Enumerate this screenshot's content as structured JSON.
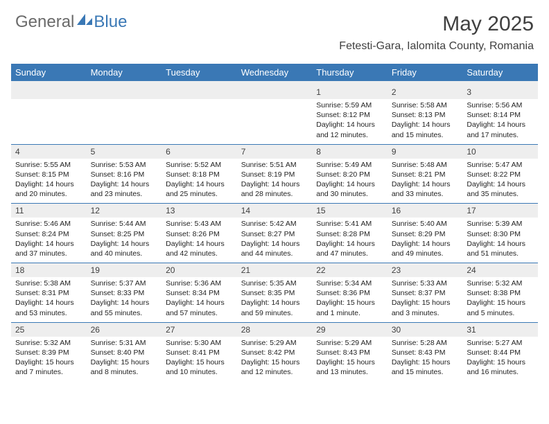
{
  "brand": {
    "general": "General",
    "blue": "Blue"
  },
  "title": "May 2025",
  "location": "Fetesti-Gara, Ialomita County, Romania",
  "colors": {
    "accent": "#3a78b5",
    "header_text": "#ffffff",
    "stripe": "#eeeeee",
    "text": "#222222"
  },
  "day_headers": [
    "Sunday",
    "Monday",
    "Tuesday",
    "Wednesday",
    "Thursday",
    "Friday",
    "Saturday"
  ],
  "weeks": [
    [
      null,
      null,
      null,
      null,
      {
        "n": "1",
        "sr": "Sunrise: 5:59 AM",
        "ss": "Sunset: 8:12 PM",
        "d1": "Daylight: 14 hours",
        "d2": "and 12 minutes."
      },
      {
        "n": "2",
        "sr": "Sunrise: 5:58 AM",
        "ss": "Sunset: 8:13 PM",
        "d1": "Daylight: 14 hours",
        "d2": "and 15 minutes."
      },
      {
        "n": "3",
        "sr": "Sunrise: 5:56 AM",
        "ss": "Sunset: 8:14 PM",
        "d1": "Daylight: 14 hours",
        "d2": "and 17 minutes."
      }
    ],
    [
      {
        "n": "4",
        "sr": "Sunrise: 5:55 AM",
        "ss": "Sunset: 8:15 PM",
        "d1": "Daylight: 14 hours",
        "d2": "and 20 minutes."
      },
      {
        "n": "5",
        "sr": "Sunrise: 5:53 AM",
        "ss": "Sunset: 8:16 PM",
        "d1": "Daylight: 14 hours",
        "d2": "and 23 minutes."
      },
      {
        "n": "6",
        "sr": "Sunrise: 5:52 AM",
        "ss": "Sunset: 8:18 PM",
        "d1": "Daylight: 14 hours",
        "d2": "and 25 minutes."
      },
      {
        "n": "7",
        "sr": "Sunrise: 5:51 AM",
        "ss": "Sunset: 8:19 PM",
        "d1": "Daylight: 14 hours",
        "d2": "and 28 minutes."
      },
      {
        "n": "8",
        "sr": "Sunrise: 5:49 AM",
        "ss": "Sunset: 8:20 PM",
        "d1": "Daylight: 14 hours",
        "d2": "and 30 minutes."
      },
      {
        "n": "9",
        "sr": "Sunrise: 5:48 AM",
        "ss": "Sunset: 8:21 PM",
        "d1": "Daylight: 14 hours",
        "d2": "and 33 minutes."
      },
      {
        "n": "10",
        "sr": "Sunrise: 5:47 AM",
        "ss": "Sunset: 8:22 PM",
        "d1": "Daylight: 14 hours",
        "d2": "and 35 minutes."
      }
    ],
    [
      {
        "n": "11",
        "sr": "Sunrise: 5:46 AM",
        "ss": "Sunset: 8:24 PM",
        "d1": "Daylight: 14 hours",
        "d2": "and 37 minutes."
      },
      {
        "n": "12",
        "sr": "Sunrise: 5:44 AM",
        "ss": "Sunset: 8:25 PM",
        "d1": "Daylight: 14 hours",
        "d2": "and 40 minutes."
      },
      {
        "n": "13",
        "sr": "Sunrise: 5:43 AM",
        "ss": "Sunset: 8:26 PM",
        "d1": "Daylight: 14 hours",
        "d2": "and 42 minutes."
      },
      {
        "n": "14",
        "sr": "Sunrise: 5:42 AM",
        "ss": "Sunset: 8:27 PM",
        "d1": "Daylight: 14 hours",
        "d2": "and 44 minutes."
      },
      {
        "n": "15",
        "sr": "Sunrise: 5:41 AM",
        "ss": "Sunset: 8:28 PM",
        "d1": "Daylight: 14 hours",
        "d2": "and 47 minutes."
      },
      {
        "n": "16",
        "sr": "Sunrise: 5:40 AM",
        "ss": "Sunset: 8:29 PM",
        "d1": "Daylight: 14 hours",
        "d2": "and 49 minutes."
      },
      {
        "n": "17",
        "sr": "Sunrise: 5:39 AM",
        "ss": "Sunset: 8:30 PM",
        "d1": "Daylight: 14 hours",
        "d2": "and 51 minutes."
      }
    ],
    [
      {
        "n": "18",
        "sr": "Sunrise: 5:38 AM",
        "ss": "Sunset: 8:31 PM",
        "d1": "Daylight: 14 hours",
        "d2": "and 53 minutes."
      },
      {
        "n": "19",
        "sr": "Sunrise: 5:37 AM",
        "ss": "Sunset: 8:33 PM",
        "d1": "Daylight: 14 hours",
        "d2": "and 55 minutes."
      },
      {
        "n": "20",
        "sr": "Sunrise: 5:36 AM",
        "ss": "Sunset: 8:34 PM",
        "d1": "Daylight: 14 hours",
        "d2": "and 57 minutes."
      },
      {
        "n": "21",
        "sr": "Sunrise: 5:35 AM",
        "ss": "Sunset: 8:35 PM",
        "d1": "Daylight: 14 hours",
        "d2": "and 59 minutes."
      },
      {
        "n": "22",
        "sr": "Sunrise: 5:34 AM",
        "ss": "Sunset: 8:36 PM",
        "d1": "Daylight: 15 hours",
        "d2": "and 1 minute."
      },
      {
        "n": "23",
        "sr": "Sunrise: 5:33 AM",
        "ss": "Sunset: 8:37 PM",
        "d1": "Daylight: 15 hours",
        "d2": "and 3 minutes."
      },
      {
        "n": "24",
        "sr": "Sunrise: 5:32 AM",
        "ss": "Sunset: 8:38 PM",
        "d1": "Daylight: 15 hours",
        "d2": "and 5 minutes."
      }
    ],
    [
      {
        "n": "25",
        "sr": "Sunrise: 5:32 AM",
        "ss": "Sunset: 8:39 PM",
        "d1": "Daylight: 15 hours",
        "d2": "and 7 minutes."
      },
      {
        "n": "26",
        "sr": "Sunrise: 5:31 AM",
        "ss": "Sunset: 8:40 PM",
        "d1": "Daylight: 15 hours",
        "d2": "and 8 minutes."
      },
      {
        "n": "27",
        "sr": "Sunrise: 5:30 AM",
        "ss": "Sunset: 8:41 PM",
        "d1": "Daylight: 15 hours",
        "d2": "and 10 minutes."
      },
      {
        "n": "28",
        "sr": "Sunrise: 5:29 AM",
        "ss": "Sunset: 8:42 PM",
        "d1": "Daylight: 15 hours",
        "d2": "and 12 minutes."
      },
      {
        "n": "29",
        "sr": "Sunrise: 5:29 AM",
        "ss": "Sunset: 8:43 PM",
        "d1": "Daylight: 15 hours",
        "d2": "and 13 minutes."
      },
      {
        "n": "30",
        "sr": "Sunrise: 5:28 AM",
        "ss": "Sunset: 8:43 PM",
        "d1": "Daylight: 15 hours",
        "d2": "and 15 minutes."
      },
      {
        "n": "31",
        "sr": "Sunrise: 5:27 AM",
        "ss": "Sunset: 8:44 PM",
        "d1": "Daylight: 15 hours",
        "d2": "and 16 minutes."
      }
    ]
  ]
}
